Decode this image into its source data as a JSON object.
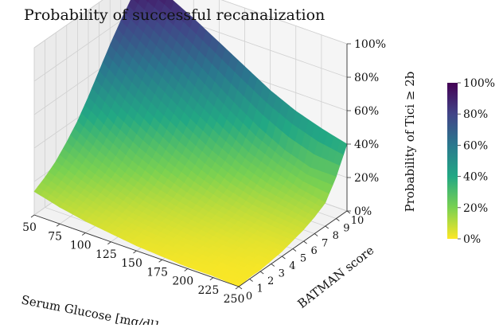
{
  "chart_data": {
    "type": "surface",
    "title": "Probability of successful recanalization",
    "xlabel": "Serum Glucose [mg/dl]",
    "ylabel": "BATMAN score",
    "zlabel": "Probability of Tici ≥ 2b",
    "x_ticks": [
      "50",
      "75",
      "100",
      "125",
      "150",
      "175",
      "200",
      "225",
      "250"
    ],
    "y_ticks": [
      "0",
      "1",
      "2",
      "3",
      "4",
      "5",
      "6",
      "7",
      "8",
      "9",
      "10"
    ],
    "z_ticks": [
      "0%",
      "20%",
      "40%",
      "60%",
      "80%",
      "100%"
    ],
    "colorbar_ticks": [
      "0%",
      "20%",
      "40%",
      "60%",
      "80%",
      "100%"
    ],
    "colormap": "viridis_r",
    "xlim": [
      50,
      250
    ],
    "ylim": [
      0,
      10
    ],
    "zlim": [
      0,
      100
    ],
    "grid": true,
    "corner_values": [
      {
        "glucose": 50,
        "batman": 0,
        "probability": 14
      },
      {
        "glucose": 250,
        "batman": 0,
        "probability": 0
      },
      {
        "glucose": 50,
        "batman": 10,
        "probability": 97
      },
      {
        "glucose": 250,
        "batman": 10,
        "probability": 40
      }
    ],
    "surface_grid": {
      "glucose": [
        50,
        75,
        100,
        125,
        150,
        175,
        200,
        225,
        250
      ],
      "batman": [
        0,
        1,
        2,
        3,
        4,
        5,
        6,
        7,
        8,
        9,
        10
      ],
      "probability": [
        [
          14,
          10,
          7,
          5,
          3,
          2,
          1,
          1,
          0
        ],
        [
          18,
          13,
          9,
          6,
          4,
          3,
          2,
          1,
          1
        ],
        [
          23,
          17,
          12,
          8,
          6,
          4,
          3,
          2,
          1
        ],
        [
          30,
          22,
          16,
          11,
          8,
          6,
          4,
          3,
          2
        ],
        [
          38,
          29,
          21,
          15,
          11,
          8,
          6,
          4,
          3
        ],
        [
          48,
          37,
          28,
          21,
          15,
          11,
          8,
          6,
          5
        ],
        [
          59,
          47,
          37,
          28,
          21,
          15,
          11,
          9,
          7
        ],
        [
          70,
          58,
          47,
          37,
          28,
          21,
          16,
          13,
          10
        ],
        [
          80,
          69,
          58,
          47,
          37,
          28,
          22,
          17,
          14
        ],
        [
          89,
          80,
          70,
          59,
          48,
          38,
          30,
          25,
          25
        ],
        [
          97,
          91,
          83,
          74,
          65,
          56,
          49,
          44,
          40
        ]
      ]
    }
  }
}
